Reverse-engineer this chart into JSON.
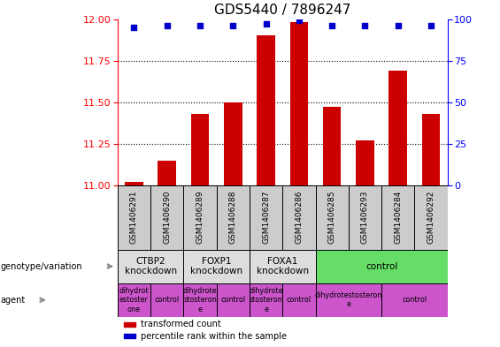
{
  "title": "GDS5440 / 7896247",
  "samples": [
    "GSM1406291",
    "GSM1406290",
    "GSM1406289",
    "GSM1406288",
    "GSM1406287",
    "GSM1406286",
    "GSM1406285",
    "GSM1406293",
    "GSM1406284",
    "GSM1406292"
  ],
  "transformed_count": [
    11.02,
    11.15,
    11.43,
    11.5,
    11.9,
    11.98,
    11.47,
    11.27,
    11.69,
    11.43
  ],
  "percentile_rank": [
    95,
    96,
    96,
    96,
    97,
    99,
    96,
    96,
    96,
    96
  ],
  "ylim": [
    11.0,
    12.0
  ],
  "y2lim": [
    0,
    100
  ],
  "yticks": [
    11.0,
    11.25,
    11.5,
    11.75,
    12.0
  ],
  "y2ticks": [
    0,
    25,
    50,
    75,
    100
  ],
  "bar_color": "#cc0000",
  "dot_color": "#0000cc",
  "bar_bottom": 11.0,
  "genotype_groups": [
    {
      "label": "CTBP2\nknockdown",
      "start": 0,
      "end": 2,
      "color": "#dddddd"
    },
    {
      "label": "FOXP1\nknockdown",
      "start": 2,
      "end": 4,
      "color": "#dddddd"
    },
    {
      "label": "FOXA1\nknockdown",
      "start": 4,
      "end": 6,
      "color": "#dddddd"
    },
    {
      "label": "control",
      "start": 6,
      "end": 10,
      "color": "#66dd66"
    }
  ],
  "agent_groups": [
    {
      "label": "dihydrot\nestoster\none",
      "start": 0,
      "end": 1,
      "color": "#cc55cc"
    },
    {
      "label": "control",
      "start": 1,
      "end": 2,
      "color": "#cc55cc"
    },
    {
      "label": "dihydrote\nstosteron\ne",
      "start": 2,
      "end": 3,
      "color": "#cc55cc"
    },
    {
      "label": "control",
      "start": 3,
      "end": 4,
      "color": "#cc55cc"
    },
    {
      "label": "dihydrote\nstosteron\ne",
      "start": 4,
      "end": 5,
      "color": "#cc55cc"
    },
    {
      "label": "control",
      "start": 5,
      "end": 6,
      "color": "#cc55cc"
    },
    {
      "label": "dihydrotestosteron\ne",
      "start": 6,
      "end": 8,
      "color": "#cc55cc"
    },
    {
      "label": "control",
      "start": 8,
      "end": 10,
      "color": "#cc55cc"
    }
  ],
  "legend_items": [
    {
      "label": "transformed count",
      "color": "#cc0000"
    },
    {
      "label": "percentile rank within the sample",
      "color": "#0000cc"
    }
  ],
  "sample_bg": "#cccccc",
  "title_fontsize": 11,
  "tick_fontsize": 8,
  "label_fontsize": 7,
  "sample_fontsize": 6.5
}
